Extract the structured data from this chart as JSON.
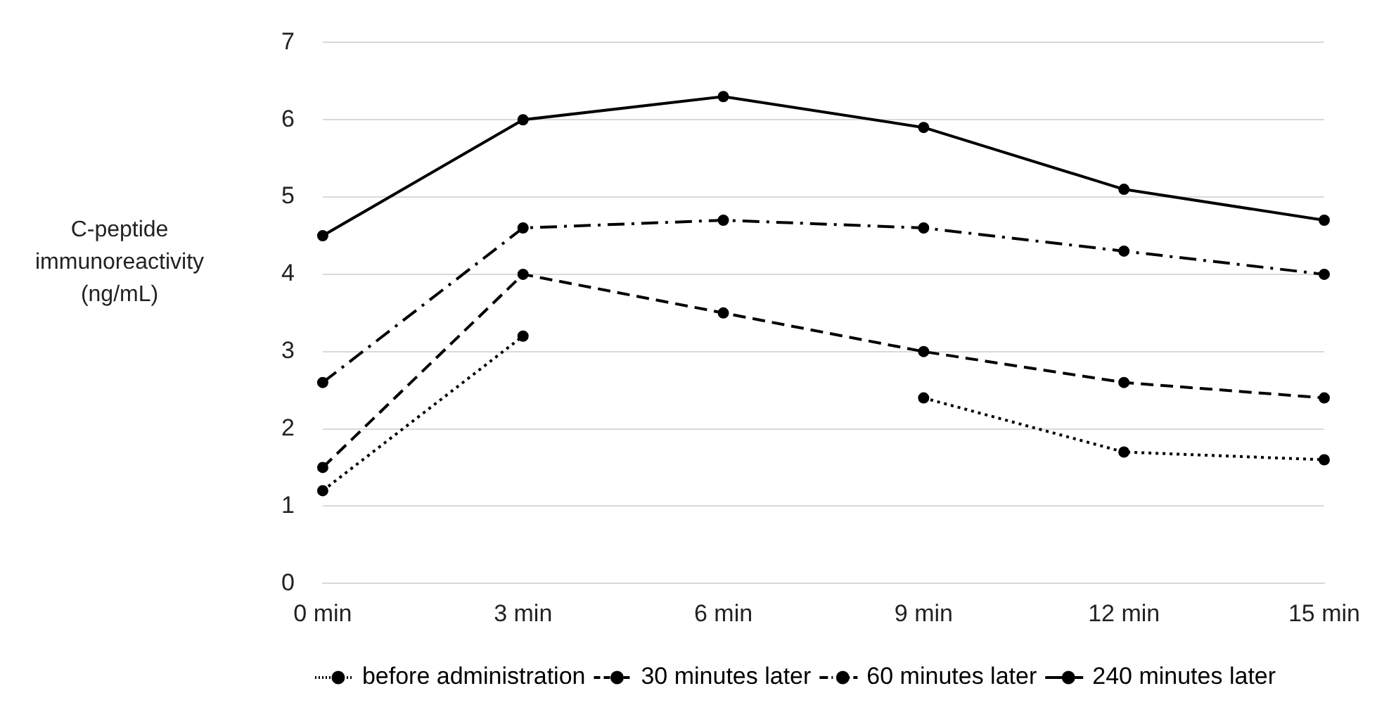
{
  "chart_data": {
    "type": "line",
    "ylabel": "C-peptide immunoreactivity (ng/mL)",
    "categories": [
      "0 min",
      "3 min",
      "6 min",
      "9 min",
      "12 min",
      "15 min"
    ],
    "series": [
      {
        "name": "before administration",
        "color": "#000000",
        "line_style": "dotted",
        "values": [
          1.2,
          3.2,
          null,
          2.4,
          1.7,
          1.6
        ]
      },
      {
        "name": "30 minutes later",
        "color": "#000000",
        "line_style": "dashed",
        "values": [
          1.5,
          4.0,
          3.5,
          3.0,
          2.6,
          2.4
        ]
      },
      {
        "name": "60 minutes later",
        "color": "#000000",
        "line_style": "dashdot",
        "values": [
          2.6,
          4.6,
          4.7,
          4.6,
          4.3,
          4.0
        ]
      },
      {
        "name": "240 minutes later",
        "color": "#000000",
        "line_style": "solid",
        "values": [
          4.5,
          6.0,
          6.3,
          5.9,
          5.1,
          4.7
        ]
      }
    ],
    "ylim": [
      0,
      7
    ],
    "yticks": [
      0,
      1,
      2,
      3,
      4,
      5,
      6,
      7
    ],
    "grid": "y",
    "legend": "bottom",
    "marker": "circle"
  }
}
